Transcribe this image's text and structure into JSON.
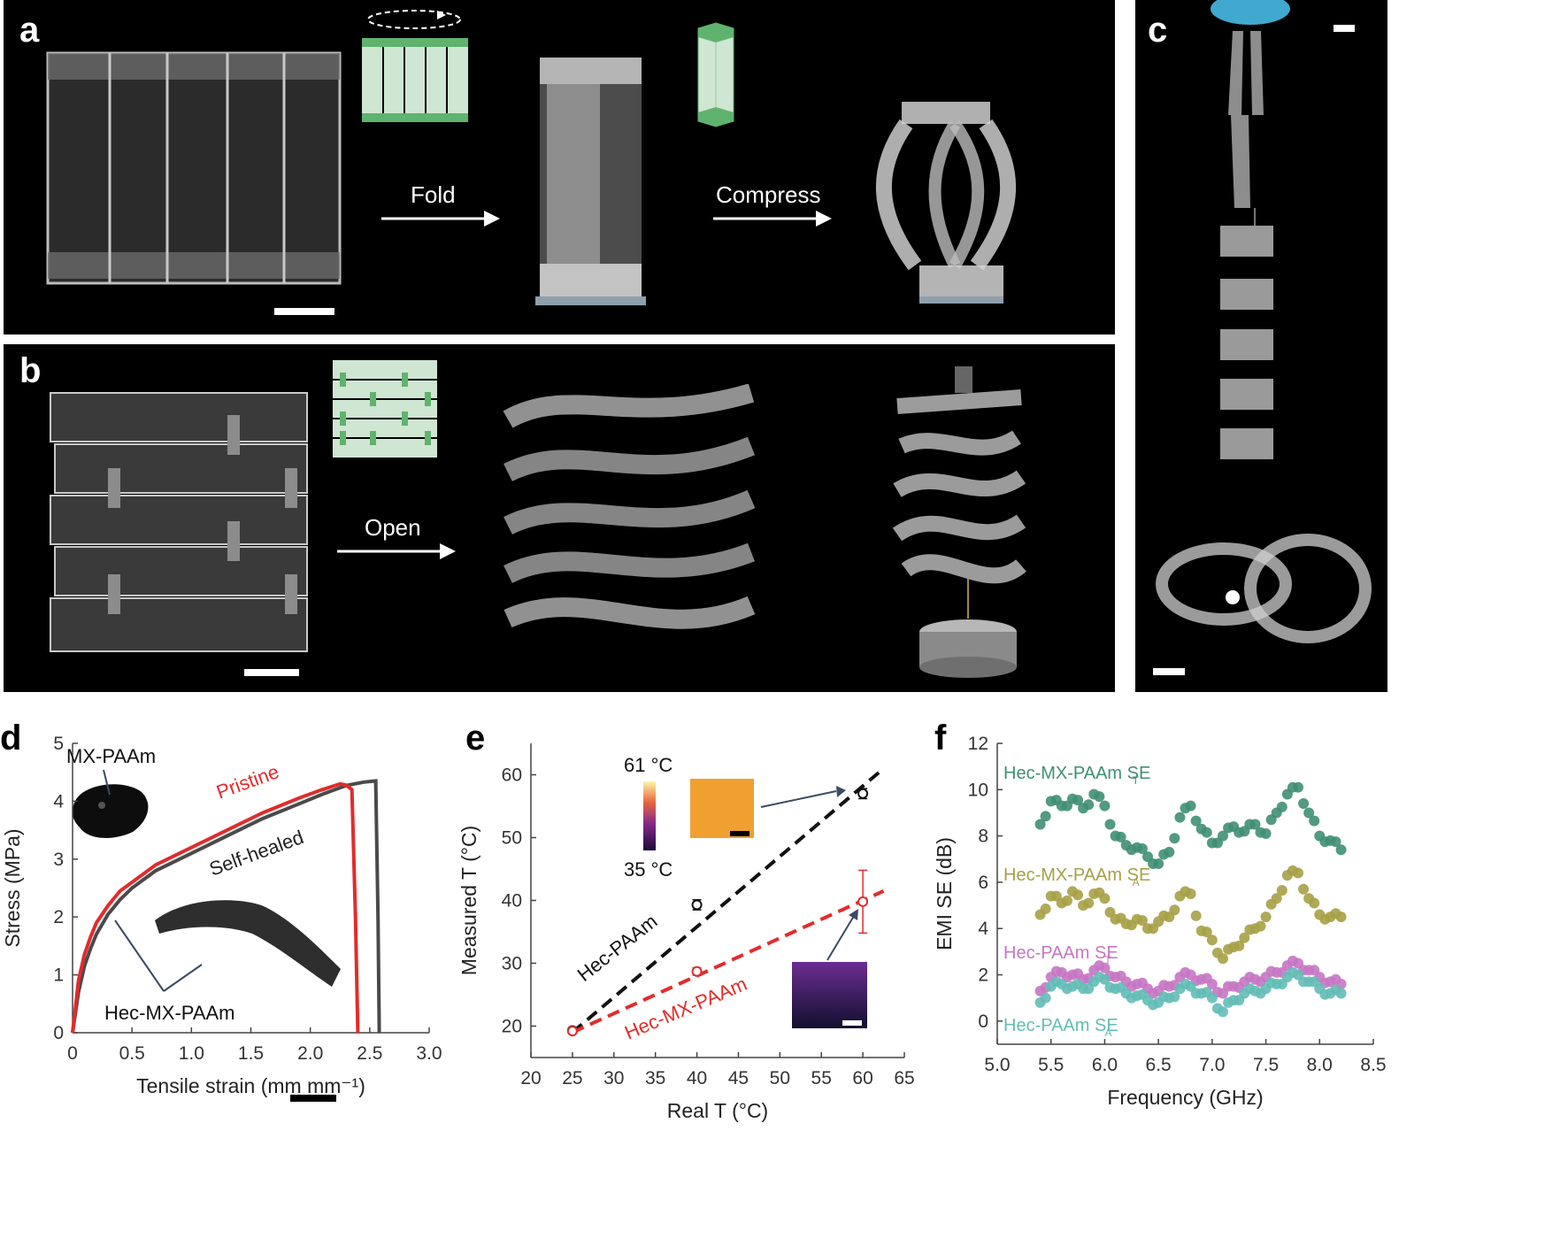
{
  "panels": {
    "a": {
      "label": "a",
      "step1": "Fold",
      "step2": "Compress"
    },
    "b": {
      "label": "b",
      "step1": "Open"
    },
    "c": {
      "label": "c"
    },
    "d": {
      "label": "d"
    },
    "e": {
      "label": "e"
    },
    "f": {
      "label": "f"
    }
  },
  "chart_data": [
    {
      "id": "d",
      "type": "line",
      "xlabel": "Tensile strain (mm mm⁻¹)",
      "ylabel": "Stress (MPa)",
      "xlim": [
        0,
        3.0
      ],
      "ylim": [
        0,
        5
      ],
      "xticks": [
        "0",
        "0.5",
        "1.0",
        "1.5",
        "2.0",
        "2.5",
        "3.0"
      ],
      "yticks": [
        "0",
        "1",
        "2",
        "3",
        "4",
        "5"
      ],
      "series": [
        {
          "name": "Pristine",
          "color": "#e32b2b",
          "x": [
            0,
            0.05,
            0.1,
            0.15,
            0.2,
            0.3,
            0.4,
            0.5,
            0.7,
            1.0,
            1.3,
            1.6,
            1.9,
            2.1,
            2.25,
            2.3,
            2.35,
            2.38,
            2.4
          ],
          "y": [
            0,
            0.9,
            1.35,
            1.65,
            1.9,
            2.2,
            2.45,
            2.6,
            2.9,
            3.2,
            3.5,
            3.8,
            4.05,
            4.2,
            4.3,
            4.28,
            4.2,
            2.0,
            0
          ]
        },
        {
          "name": "Self-healed",
          "color": "#4a4a4a",
          "x": [
            0,
            0.05,
            0.1,
            0.15,
            0.2,
            0.3,
            0.4,
            0.5,
            0.7,
            1.0,
            1.3,
            1.6,
            1.9,
            2.1,
            2.3,
            2.45,
            2.55,
            2.57,
            2.58
          ],
          "y": [
            0,
            0.7,
            1.15,
            1.45,
            1.7,
            2.05,
            2.3,
            2.5,
            2.8,
            3.1,
            3.4,
            3.7,
            3.95,
            4.12,
            4.27,
            4.33,
            4.35,
            2.0,
            0
          ]
        }
      ],
      "annotations": [
        "MX-PAAm",
        "Pristine",
        "Self-healed",
        "Hec-MX-PAAm"
      ]
    },
    {
      "id": "e",
      "type": "scatter",
      "xlabel": "Real T (°C)",
      "ylabel": "Measured T (°C)",
      "xlim": [
        20,
        65
      ],
      "ylim": [
        15,
        65
      ],
      "xticks": [
        "20",
        "25",
        "30",
        "35",
        "40",
        "45",
        "50",
        "55",
        "60",
        "65"
      ],
      "yticks": [
        "20",
        "30",
        "40",
        "50",
        "60"
      ],
      "colorbar": {
        "max": "61 °C",
        "min": "35 °C"
      },
      "series": [
        {
          "name": "Hec-PAAm",
          "color": "#111111",
          "x": [
            25,
            40,
            60
          ],
          "y": [
            19.3,
            39.3,
            57.0
          ],
          "err": [
            0.4,
            0.8,
            0.8
          ],
          "fit": [
            [
              25,
              19.0
            ],
            [
              62.5,
              61.0
            ]
          ]
        },
        {
          "name": "Hec-MX-PAAm",
          "color": "#e32b2b",
          "x": [
            25,
            40,
            60
          ],
          "y": [
            19.2,
            28.7,
            39.8
          ],
          "err": [
            0.4,
            0.6,
            5.0
          ],
          "fit": [
            [
              25,
              19.0
            ],
            [
              62.5,
              41.5
            ]
          ]
        }
      ]
    },
    {
      "id": "f",
      "type": "scatter",
      "xlabel": "Frequency (GHz)",
      "ylabel": "EMI SE (dB)",
      "xlim": [
        5.0,
        8.5
      ],
      "ylim": [
        -1,
        12
      ],
      "xticks": [
        "5.0",
        "5.5",
        "6.0",
        "6.5",
        "7.0",
        "7.5",
        "8.0",
        "8.5"
      ],
      "yticks": [
        "0",
        "2",
        "4",
        "6",
        "8",
        "10",
        "12"
      ],
      "series": [
        {
          "name": "Hec-MX-PAAm SE",
          "sub": "T",
          "color": "#3f8f73",
          "x": [
            5.4,
            5.5,
            5.6,
            5.7,
            5.8,
            5.9,
            6.0,
            6.1,
            6.2,
            6.3,
            6.4,
            6.5,
            6.6,
            6.7,
            6.8,
            6.9,
            7.0,
            7.1,
            7.2,
            7.3,
            7.4,
            7.5,
            7.6,
            7.7,
            7.8,
            7.9,
            8.0,
            8.1,
            8.2
          ],
          "y": [
            8.5,
            9.5,
            9.3,
            9.6,
            9.2,
            9.8,
            9.3,
            8.0,
            7.6,
            7.5,
            7.1,
            6.8,
            7.3,
            8.8,
            9.3,
            8.3,
            7.7,
            8.0,
            8.4,
            8.2,
            8.5,
            8.1,
            9.0,
            9.8,
            10.1,
            9.0,
            8.0,
            7.8,
            7.4
          ]
        },
        {
          "name": "Hec-MX-PAAm SE",
          "sub": "A",
          "color": "#a6a046",
          "x": [
            5.4,
            5.5,
            5.6,
            5.7,
            5.8,
            5.9,
            6.0,
            6.1,
            6.2,
            6.3,
            6.4,
            6.5,
            6.6,
            6.7,
            6.8,
            6.9,
            7.0,
            7.1,
            7.2,
            7.3,
            7.4,
            7.5,
            7.6,
            7.7,
            7.8,
            7.9,
            8.0,
            8.1,
            8.2
          ],
          "y": [
            4.6,
            5.4,
            5.1,
            5.6,
            5.0,
            5.5,
            5.3,
            4.4,
            4.2,
            4.4,
            4.0,
            4.3,
            4.5,
            5.4,
            5.5,
            3.9,
            3.5,
            2.7,
            3.2,
            3.6,
            4.0,
            4.5,
            5.3,
            6.3,
            6.4,
            5.3,
            4.6,
            4.5,
            4.5
          ]
        },
        {
          "name": "Hec-PAAm SE",
          "sub": "T",
          "color": "#c776c3",
          "x": [
            5.4,
            5.5,
            5.6,
            5.7,
            5.8,
            5.9,
            6.0,
            6.1,
            6.2,
            6.3,
            6.4,
            6.5,
            6.6,
            6.7,
            6.8,
            6.9,
            7.0,
            7.1,
            7.2,
            7.3,
            7.4,
            7.5,
            7.6,
            7.7,
            7.8,
            7.9,
            8.0,
            8.1,
            8.2
          ],
          "y": [
            1.3,
            1.9,
            2.1,
            2.0,
            1.8,
            2.2,
            2.3,
            1.9,
            1.7,
            1.6,
            1.4,
            1.3,
            1.5,
            1.9,
            2.0,
            1.8,
            1.6,
            1.2,
            1.5,
            1.7,
            1.8,
            1.9,
            2.1,
            2.4,
            2.5,
            2.2,
            1.9,
            1.7,
            1.6
          ]
        },
        {
          "name": "Hec-PAAm SE",
          "sub": "A",
          "color": "#63bdb6",
          "x": [
            5.4,
            5.5,
            5.6,
            5.7,
            5.8,
            5.9,
            6.0,
            6.1,
            6.2,
            6.3,
            6.4,
            6.5,
            6.6,
            6.7,
            6.8,
            6.9,
            7.0,
            7.1,
            7.2,
            7.3,
            7.4,
            7.5,
            7.6,
            7.7,
            7.8,
            7.9,
            8.0,
            8.1,
            8.2
          ],
          "y": [
            0.8,
            1.5,
            1.6,
            1.5,
            1.4,
            1.7,
            1.8,
            1.4,
            1.2,
            1.1,
            0.9,
            0.8,
            1.0,
            1.4,
            1.5,
            1.2,
            1.0,
            0.4,
            0.9,
            1.2,
            1.3,
            1.4,
            1.6,
            1.9,
            2.0,
            1.7,
            1.4,
            1.2,
            1.2
          ]
        }
      ]
    }
  ]
}
